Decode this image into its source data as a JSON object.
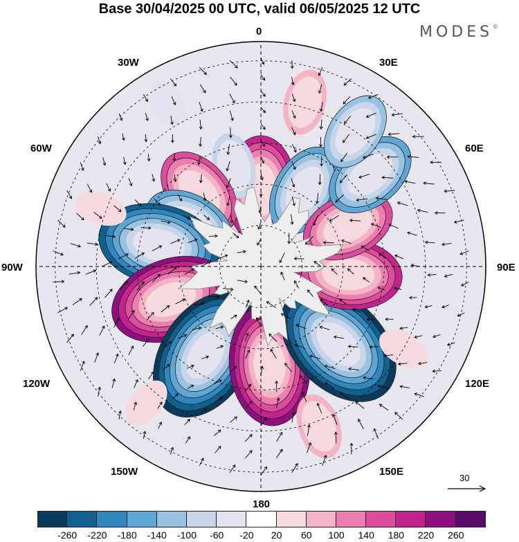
{
  "title": "Base 30/04/2025 00 UTC, valid 06/05/2025 12 UTC",
  "brand": {
    "name": "MODES",
    "mark": "©"
  },
  "longitude_labels": {
    "lon_0": "0",
    "lon_30e": "30E",
    "lon_60e": "60E",
    "lon_90e": "90E",
    "lon_120e": "120E",
    "lon_150e": "150E",
    "lon_180": "180",
    "lon_150w": "150W",
    "lon_120w": "120W",
    "lon_90w": "90W",
    "lon_60w": "60W",
    "lon_30w": "30W"
  },
  "vector_reference": {
    "value": "30"
  },
  "colorbar": {
    "colors": [
      "#0b3a5c",
      "#11608f",
      "#2f87bd",
      "#5ea7d4",
      "#97c2e1",
      "#c9d6ea",
      "#e4e3f0",
      "#ffffff",
      "#f7dadd",
      "#f3b4c6",
      "#ec7fb0",
      "#de4c9e",
      "#c2238d",
      "#8f0f7f",
      "#5a0c6b"
    ],
    "ticks": [
      "-260",
      "-220",
      "-180",
      "-140",
      "-100",
      "-60",
      "-20",
      "20",
      "60",
      "100",
      "140",
      "180",
      "220",
      "260"
    ]
  },
  "map": {
    "projection": "south-polar-stereographic",
    "field": "geopotential height anomaly with wind vectors",
    "blobs": [
      {
        "lon": 0,
        "lat": -62,
        "value": 200
      },
      {
        "lon": 30,
        "lat": -58,
        "value": -160
      },
      {
        "lon": -15,
        "lat": -52,
        "value": -60
      },
      {
        "lon": -40,
        "lat": -55,
        "value": 140
      },
      {
        "lon": -60,
        "lat": -60,
        "value": -150
      },
      {
        "lon": -78,
        "lat": -52,
        "value": -220
      },
      {
        "lon": -110,
        "lat": -55,
        "value": 220
      },
      {
        "lon": -148,
        "lat": -52,
        "value": -260
      },
      {
        "lon": 175,
        "lat": -54,
        "value": 220
      },
      {
        "lon": 135,
        "lat": -50,
        "value": -260
      },
      {
        "lon": 95,
        "lat": -58,
        "value": 200
      },
      {
        "lon": 65,
        "lat": -55,
        "value": 160
      },
      {
        "lon": 50,
        "lat": -38,
        "value": -160
      },
      {
        "lon": 35,
        "lat": -30,
        "value": -120
      },
      {
        "lon": 15,
        "lat": -28,
        "value": 60
      },
      {
        "lon": -30,
        "lat": -22,
        "value": -40
      },
      {
        "lon": -70,
        "lat": -28,
        "value": 40
      },
      {
        "lon": 120,
        "lat": -30,
        "value": 40
      },
      {
        "lon": 160,
        "lat": -28,
        "value": 60
      },
      {
        "lon": -140,
        "lat": -25,
        "value": 40
      }
    ]
  }
}
